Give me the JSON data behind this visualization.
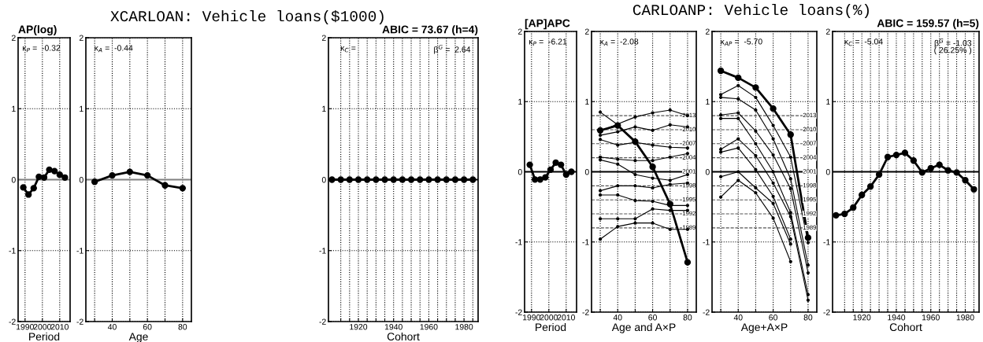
{
  "chart_data": [
    {
      "type": "line",
      "subtitle": "AP(log)",
      "xlabel": "Period",
      "annotations": [
        "κ$_{P}$ =  -0.32",
        "XCARLOAN: Vehicle loans($1000)"
      ],
      "x": [
        1989,
        1992,
        1995,
        1998,
        2001,
        2004,
        2007,
        2010,
        2013
      ],
      "series": [
        {
          "color": "#000000",
          "values": [
            -0.11,
            -0.21,
            -0.12,
            0.04,
            0.03,
            0.14,
            0.12,
            0.07,
            0.03
          ]
        }
      ],
      "xlim": [
        1986,
        2016
      ],
      "xticks": [
        1990,
        2000,
        2010
      ],
      "ylim": [
        -2,
        2
      ],
      "yticks": [
        -2,
        -1,
        0,
        1,
        2
      ],
      "grid": true,
      "marker": "circle",
      "line_style": "solid",
      "legend": false,
      "ref_lines": [
        {
          "axis": "y",
          "value": 0,
          "color": "#808080",
          "line_style": "solid"
        }
      ]
    },
    {
      "type": "line",
      "xlabel": "Age",
      "annotations": [
        "κ$_{A}$ =  -0.44"
      ],
      "x": [
        30,
        40,
        50,
        60,
        70,
        80
      ],
      "series": [
        {
          "color": "#000000",
          "values": [
            -0.03,
            0.06,
            0.11,
            0.06,
            -0.08,
            -0.12
          ]
        }
      ],
      "xlim": [
        25,
        85
      ],
      "xticks": [
        {
          "value": 30,
          "label": null
        },
        40,
        {
          "value": 50,
          "label": null
        },
        60,
        {
          "value": 70,
          "label": null
        },
        80
      ],
      "ylim": [
        -2,
        2
      ],
      "yticks": [
        -2,
        -1,
        0,
        1,
        2
      ],
      "grid": true,
      "marker": "circle",
      "line_style": "solid",
      "legend": false,
      "ref_lines": [
        {
          "axis": "y",
          "value": 0,
          "color": "#808080",
          "line_style": "solid"
        }
      ]
    },
    {
      "type": "line",
      "subtitle": "ABIC = 73.67 (h=4)",
      "xlabel": "Cohort",
      "annotations": [
        "κ$_{C}$ =",
        "β$^{G}$ =  2.64"
      ],
      "x": [
        1905,
        1910,
        1915,
        1920,
        1925,
        1930,
        1935,
        1940,
        1945,
        1950,
        1955,
        1960,
        1965,
        1970,
        1975,
        1980,
        1985
      ],
      "series": [
        {
          "color": "#000000",
          "values": [
            0,
            0,
            0,
            0,
            0,
            0,
            0,
            0,
            0,
            0,
            0,
            0,
            0,
            0,
            0,
            0,
            0
          ]
        }
      ],
      "xlim": [
        1903,
        1988
      ],
      "xticks": [
        {
          "value": 1910,
          "label": null
        },
        {
          "value": 1915,
          "label": null
        },
        1920,
        {
          "value": 1925,
          "label": null
        },
        {
          "value": 1930,
          "label": null
        },
        {
          "value": 1935,
          "label": null
        },
        1940,
        {
          "value": 1945,
          "label": null
        },
        {
          "value": 1950,
          "label": null
        },
        {
          "value": 1955,
          "label": null
        },
        1960,
        {
          "value": 1965,
          "label": null
        },
        {
          "value": 1970,
          "label": null
        },
        {
          "value": 1975,
          "label": null
        },
        1980,
        {
          "value": 1985,
          "label": null
        }
      ],
      "ylim": [
        -2,
        2
      ],
      "yticks": [
        -2,
        -1,
        0,
        1,
        2
      ],
      "grid": true,
      "marker": "circle",
      "line_style": "solid",
      "legend": false,
      "ref_lines": [
        {
          "axis": "y",
          "value": 0,
          "color": "#000000",
          "line_style": "solid"
        }
      ]
    },
    {
      "type": "line",
      "subtitle": "[AP]APC",
      "xlabel": "Period",
      "annotations": [
        "κ$_{P}$ =  -6.21",
        "CARLOANP: Vehicle loans(%)"
      ],
      "x": [
        1989,
        1992,
        1995,
        1998,
        2001,
        2004,
        2007,
        2010,
        2013
      ],
      "series": [
        {
          "color": "#000000",
          "values": [
            0.1,
            -0.11,
            -0.11,
            -0.08,
            0.03,
            0.13,
            0.1,
            -0.04,
            0.0
          ]
        }
      ],
      "xlim": [
        1986,
        2016
      ],
      "xticks": [
        1990,
        2000,
        2010
      ],
      "ylim": [
        -2,
        2
      ],
      "yticks": [
        -2,
        -1,
        0,
        1,
        2
      ],
      "grid": true,
      "marker": "circle",
      "line_style": "solid",
      "legend": false,
      "ref_lines": [
        {
          "axis": "y",
          "value": 0,
          "color": "#000000",
          "line_style": "solid"
        }
      ]
    },
    {
      "type": "line",
      "xlabel": "Age and A×P",
      "annotations": [
        "κ$_{A}$ =  -2.08",
        {
          "text": "2013",
          "y": 0.8
        },
        {
          "text": "2010",
          "y": 0.6
        },
        {
          "text": "2007",
          "y": 0.4
        },
        {
          "text": "2004",
          "y": 0.2
        },
        {
          "text": "2001",
          "y": 0.0
        },
        {
          "text": "1998",
          "y": -0.2
        },
        {
          "text": "1995",
          "y": -0.4
        },
        {
          "text": "1992",
          "y": -0.6
        },
        {
          "text": "1989",
          "y": -0.8
        }
      ],
      "x": [
        30,
        40,
        50,
        60,
        70,
        80
      ],
      "series": [
        {
          "color": "#000000",
          "values": [
            0.59,
            0.66,
            0.43,
            0.07,
            -0.46,
            -1.29
          ]
        },
        {
          "color": "#000000",
          "values": [
            0.58,
            0.68,
            0.78,
            0.84,
            0.88,
            0.8
          ]
        },
        {
          "color": "#000000",
          "values": [
            0.85,
            0.67,
            null,
            null,
            null,
            null
          ]
        },
        {
          "color": "#000000",
          "values": [
            0.52,
            0.57,
            0.64,
            0.59,
            0.67,
            0.64
          ]
        },
        {
          "color": "#000000",
          "values": [
            0.46,
            0.38,
            0.42,
            0.38,
            0.35,
            0.34
          ]
        },
        {
          "color": "#000000",
          "values": [
            0.21,
            0.18,
            0.16,
            0.16,
            0.21,
            0.26
          ]
        },
        {
          "color": "#000000",
          "values": [
            0.17,
            0.11,
            -0.04,
            -0.09,
            -0.12,
            -0.04
          ]
        },
        {
          "color": "#000000",
          "values": [
            -0.27,
            -0.2,
            -0.2,
            -0.23,
            -0.18,
            -0.16
          ]
        },
        {
          "color": "#000000",
          "values": [
            -0.33,
            -0.33,
            -0.41,
            -0.42,
            -0.48,
            -0.48
          ]
        },
        {
          "color": "#000000",
          "values": [
            -0.67,
            -0.67,
            -0.67,
            -0.53,
            -0.55,
            -0.55
          ]
        },
        {
          "color": "#000000",
          "values": [
            -0.96,
            -0.78,
            -0.73,
            -0.73,
            -0.82,
            -0.82
          ]
        }
      ],
      "xlim": [
        25,
        85
      ],
      "xticks": [
        {
          "value": 30,
          "label": null
        },
        40,
        {
          "value": 50,
          "label": null
        },
        60,
        {
          "value": 70,
          "label": null
        },
        80
      ],
      "ylim": [
        -2,
        2
      ],
      "yticks": [
        -2,
        -1,
        0,
        1,
        2
      ],
      "grid": true,
      "marker": "circle",
      "line_style": "solid",
      "legend": false,
      "ref_lines": [
        {
          "axis": "y",
          "value": 0,
          "color": "#000000",
          "line_style": "solid"
        },
        {
          "axis": "y",
          "value": 0.8,
          "color": "#555555",
          "line_style": "dashed"
        },
        {
          "axis": "y",
          "value": 0.6,
          "color": "#555555",
          "line_style": "dashed"
        },
        {
          "axis": "y",
          "value": 0.4,
          "color": "#555555",
          "line_style": "dashed"
        },
        {
          "axis": "y",
          "value": 0.2,
          "color": "#555555",
          "line_style": "dashed"
        },
        {
          "axis": "y",
          "value": -0.2,
          "color": "#555555",
          "line_style": "dashed"
        },
        {
          "axis": "y",
          "value": -0.4,
          "color": "#555555",
          "line_style": "dashed"
        },
        {
          "axis": "y",
          "value": -0.6,
          "color": "#555555",
          "line_style": "dashed"
        },
        {
          "axis": "y",
          "value": -0.8,
          "color": "#555555",
          "line_style": "dashed"
        }
      ]
    },
    {
      "type": "line",
      "xlabel": "Age+A×P",
      "annotations": [
        "κ$_{AP}$ =  -5.70",
        {
          "text": "2013",
          "y": 0.8
        },
        {
          "text": "2010",
          "y": 0.6
        },
        {
          "text": "2007",
          "y": 0.4
        },
        {
          "text": "2004",
          "y": 0.2
        },
        {
          "text": "2001",
          "y": 0.0
        },
        {
          "text": "1998",
          "y": -0.2
        },
        {
          "text": "1995",
          "y": -0.4
        },
        {
          "text": "1992",
          "y": -0.6
        },
        {
          "text": "1989",
          "y": -0.8
        }
      ],
      "x": [
        30,
        40,
        50,
        60,
        70,
        80
      ],
      "series": [
        {
          "color": "#000000",
          "values": [
            1.44,
            1.34,
            1.2,
            0.9,
            0.53,
            -0.94
          ]
        },
        {
          "color": "#000000",
          "values": [
            1.1,
            1.23,
            1.06,
            0.66,
            0.21,
            -1.01
          ]
        },
        {
          "color": "#000000",
          "values": [
            1.06,
            1.04,
            0.88,
            0.47,
            -0.1,
            -1.33
          ]
        },
        {
          "color": "#000000",
          "values": [
            0.81,
            0.84,
            0.58,
            0.24,
            -0.24,
            -1.44
          ]
        },
        {
          "color": "#000000",
          "values": [
            0.76,
            0.76,
            0.4,
            0.0,
            -0.58,
            -1.75
          ]
        },
        {
          "color": "#000000",
          "values": [
            0.32,
            0.47,
            0.23,
            -0.16,
            -0.64,
            -1.83
          ]
        },
        {
          "color": "#000000",
          "values": [
            0.28,
            0.34,
            0.03,
            -0.35,
            -0.96,
            null
          ]
        },
        {
          "color": "#000000",
          "values": [
            -0.07,
            0.0,
            -0.23,
            -0.45,
            -1.03,
            null
          ]
        },
        {
          "color": "#000000",
          "values": [
            -0.36,
            -0.12,
            -0.3,
            -0.66,
            -1.28,
            null
          ]
        }
      ],
      "xlim": [
        25,
        85
      ],
      "xticks": [
        {
          "value": 30,
          "label": null
        },
        40,
        {
          "value": 50,
          "label": null
        },
        60,
        {
          "value": 70,
          "label": null
        },
        80
      ],
      "ylim": [
        -2,
        2
      ],
      "yticks": [
        -2,
        -1,
        0,
        1,
        2
      ],
      "grid": true,
      "marker": "circle",
      "line_style": "solid",
      "legend": false,
      "ref_lines": [
        {
          "axis": "y",
          "value": 0,
          "color": "#000000",
          "line_style": "solid"
        },
        {
          "axis": "y",
          "value": 0.8,
          "color": "#555555",
          "line_style": "dashed"
        },
        {
          "axis": "y",
          "value": 0.6,
          "color": "#555555",
          "line_style": "dashed"
        },
        {
          "axis": "y",
          "value": 0.4,
          "color": "#555555",
          "line_style": "dashed"
        },
        {
          "axis": "y",
          "value": 0.2,
          "color": "#555555",
          "line_style": "dashed"
        },
        {
          "axis": "y",
          "value": -0.2,
          "color": "#555555",
          "line_style": "dashed"
        },
        {
          "axis": "y",
          "value": -0.4,
          "color": "#555555",
          "line_style": "dashed"
        },
        {
          "axis": "y",
          "value": -0.6,
          "color": "#555555",
          "line_style": "dashed"
        },
        {
          "axis": "y",
          "value": -0.8,
          "color": "#555555",
          "line_style": "dashed"
        }
      ]
    },
    {
      "type": "line",
      "subtitle": "ABIC = 159.57 (h=5)",
      "xlabel": "Cohort",
      "annotations": [
        "κ$_{C}$ =  -5.04",
        "β$^{G}$ = -1.03",
        "( 26.25% )"
      ],
      "x": [
        1905,
        1910,
        1915,
        1920,
        1925,
        1930,
        1935,
        1940,
        1945,
        1950,
        1955,
        1960,
        1965,
        1970,
        1975,
        1980,
        1985
      ],
      "series": [
        {
          "color": "#000000",
          "values": [
            -0.62,
            -0.6,
            -0.51,
            -0.33,
            -0.21,
            -0.04,
            0.21,
            0.24,
            0.27,
            0.16,
            -0.01,
            0.05,
            0.1,
            0.02,
            -0.01,
            -0.12,
            -0.25
          ]
        }
      ],
      "xlim": [
        1903,
        1988
      ],
      "xticks": [
        {
          "value": 1910,
          "label": null
        },
        {
          "value": 1915,
          "label": null
        },
        1920,
        {
          "value": 1925,
          "label": null
        },
        {
          "value": 1930,
          "label": null
        },
        {
          "value": 1935,
          "label": null
        },
        1940,
        {
          "value": 1945,
          "label": null
        },
        {
          "value": 1950,
          "label": null
        },
        {
          "value": 1955,
          "label": null
        },
        1960,
        {
          "value": 1965,
          "label": null
        },
        {
          "value": 1970,
          "label": null
        },
        {
          "value": 1975,
          "label": null
        },
        1980,
        {
          "value": 1985,
          "label": null
        }
      ],
      "ylim": [
        -2,
        2
      ],
      "yticks": [
        -2,
        -1,
        0,
        1,
        2
      ],
      "grid": true,
      "marker": "circle",
      "line_style": "solid",
      "legend": false,
      "ref_lines": [
        {
          "axis": "y",
          "value": 0,
          "color": "#000000",
          "line_style": "solid"
        }
      ]
    }
  ]
}
